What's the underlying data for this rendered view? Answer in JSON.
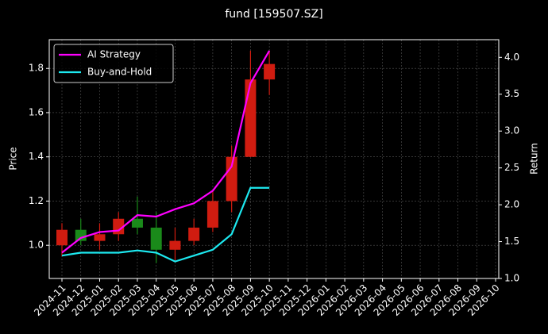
{
  "chart_data": {
    "type": "candlestick",
    "title": "fund [159507.SZ]",
    "ylabel": "Price",
    "y2label": "Return",
    "categories": [
      "2024-11",
      "2024-12",
      "2025-01",
      "2025-02",
      "2025-03",
      "2025-04",
      "2025-05",
      "2025-06",
      "2025-07",
      "2025-08",
      "2025-09",
      "2025-10",
      "2025-11",
      "2025-12",
      "2026-01",
      "2026-02",
      "2026-03",
      "2026-04",
      "2026-05",
      "2026-06",
      "2026-07",
      "2026-08",
      "2026-09",
      "2026-10"
    ],
    "open": [
      1.0,
      1.07,
      1.02,
      1.05,
      1.12,
      1.08,
      0.98,
      1.02,
      1.08,
      1.2,
      1.4,
      1.75,
      null,
      null,
      null,
      null,
      null,
      null,
      null,
      null,
      null,
      null,
      null,
      null
    ],
    "high": [
      1.1,
      1.12,
      1.1,
      1.15,
      1.22,
      1.15,
      1.08,
      1.12,
      1.25,
      1.45,
      1.88,
      1.88,
      null,
      null,
      null,
      null,
      null,
      null,
      null,
      null,
      null,
      null,
      null,
      null
    ],
    "low": [
      0.95,
      1.0,
      0.98,
      1.02,
      1.05,
      0.92,
      0.93,
      1.0,
      1.06,
      1.15,
      1.4,
      1.68,
      null,
      null,
      null,
      null,
      null,
      null,
      null,
      null,
      null,
      null,
      null,
      null
    ],
    "close": [
      1.07,
      1.02,
      1.05,
      1.12,
      1.08,
      0.98,
      1.02,
      1.08,
      1.2,
      1.4,
      1.75,
      1.82,
      null,
      null,
      null,
      null,
      null,
      null,
      null,
      null,
      null,
      null,
      null,
      null
    ],
    "up_color": "#d01c10",
    "down_color": "#1a8a1a",
    "ylim": [
      0.85,
      1.93
    ],
    "yticks": [
      {
        "value": 1,
        "label": "1.0"
      },
      1.2,
      1.4,
      1.6,
      1.8
    ],
    "y2lim": [
      1,
      4.24
    ],
    "y2ticks": [
      {
        "value": 1,
        "label": "1.0"
      },
      1.5,
      {
        "value": 2,
        "label": "2.0"
      },
      2.5,
      {
        "value": 3,
        "label": "3.0"
      },
      3.5,
      {
        "value": 4,
        "label": "4.0"
      }
    ],
    "series": [
      {
        "name": "AI Strategy",
        "color": "#ff00ff",
        "axis": "y2",
        "values": [
          1.35,
          1.55,
          1.63,
          1.65,
          1.86,
          1.84,
          1.94,
          2.02,
          2.19,
          2.52,
          3.65,
          4.09,
          null,
          null,
          null,
          null,
          null,
          null,
          null,
          null,
          null,
          null,
          null,
          null
        ]
      },
      {
        "name": "Buy-and-Hold",
        "color": "#1de9f0",
        "axis": "y2",
        "values": [
          1.31,
          1.35,
          1.35,
          1.35,
          1.38,
          1.35,
          1.23,
          1.31,
          1.39,
          1.6,
          2.23,
          2.23,
          null,
          null,
          null,
          null,
          null,
          null,
          null,
          null,
          null,
          null,
          null,
          null
        ]
      }
    ],
    "legend": "upper left",
    "grid": true
  }
}
